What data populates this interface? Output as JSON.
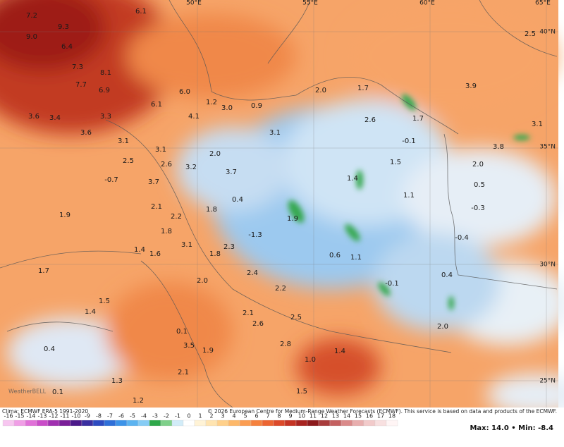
{
  "map": {
    "lon_labels": [
      "50°E",
      "55°E",
      "60°E",
      "65°E"
    ],
    "lat_labels": [
      "40°N",
      "35°N",
      "30°N",
      "25°N"
    ],
    "values": [
      "7.2",
      "6.1",
      "9.3",
      "9.0",
      "6.4",
      "7.3",
      "8.1",
      "7.7",
      "6.9",
      "6.0",
      "6.1",
      "3.3",
      "3.6",
      "3.4",
      "3.6",
      "4.1",
      "1.2",
      "3.0",
      "0.9",
      "2.0",
      "1.7",
      "3.1",
      "2.6",
      "1.7",
      "3.9",
      "2.5",
      "3.1",
      "-0.1",
      "3.8",
      "3.1",
      "3.1",
      "2.5",
      "2.6",
      "3.2",
      "2.0",
      "1.5",
      "2.0",
      "-0.7",
      "3.7",
      "3.7",
      "1.4",
      "0.5",
      "1.1",
      "0.4",
      "-0.3",
      "2.1",
      "1.8",
      "2.2",
      "1.9",
      "1.9",
      "1.8",
      "-1.3",
      "3.1",
      "2.3",
      "1.4",
      "1.6",
      "-0.4",
      "0.6",
      "1.1",
      "1.8",
      "1.7",
      "2.4",
      "0.4",
      "-0.1",
      "2.0",
      "2.2",
      "1.5",
      "1.4",
      "2.1",
      "2.5",
      "2.6",
      "2.0",
      "0.1",
      "3.5",
      "1.9",
      "2.8",
      "0.4",
      "1.0",
      "2.1",
      "1.3",
      "0.1",
      "1.5",
      "1.2",
      "1.4"
    ],
    "watermark": "WeatherBELL"
  },
  "footer": {
    "source": "Clima: ECMWF ERA-5 1991-2020",
    "copyright": "© 2026 European Centre for Medium-Range Weather Forecasts (ECMWF). This service is based on data and products of the ECMWF.",
    "stats": "Max: 14.0 • Min: -8.4"
  },
  "colorbar": {
    "ticks": [
      "-16",
      "-15",
      "-14",
      "-13",
      "-12",
      "-11",
      "-10",
      "-9",
      "-8",
      "-7",
      "-6",
      "-5",
      "-4",
      "-3",
      "-2",
      "-1",
      "0",
      "1",
      "2",
      "3",
      "4",
      "5",
      "6",
      "7",
      "8",
      "9",
      "10",
      "11",
      "12",
      "13",
      "14",
      "15",
      "16",
      "17",
      "18"
    ],
    "colors": [
      "#f7c6f0",
      "#f09ee6",
      "#e071d8",
      "#c94dc8",
      "#a030b0",
      "#7a1e98",
      "#4c1a8a",
      "#3a2fa0",
      "#2d4bc0",
      "#2f6fd8",
      "#3d93e8",
      "#5cb3f0",
      "#86ccf5",
      "#2fa84a",
      "#7fd08a",
      "#d2ecf8",
      "#ffffff",
      "#fff3d6",
      "#ffe4b0",
      "#ffd08a",
      "#fdb86a",
      "#fb9d52",
      "#f5813e",
      "#ec6532",
      "#dc4a2a",
      "#c53424",
      "#a82420",
      "#8c1a1c",
      "#a83c3c",
      "#c46060",
      "#da8a8a",
      "#e8aeae",
      "#f2caca",
      "#f8e0e0",
      "#fff5f5"
    ]
  }
}
